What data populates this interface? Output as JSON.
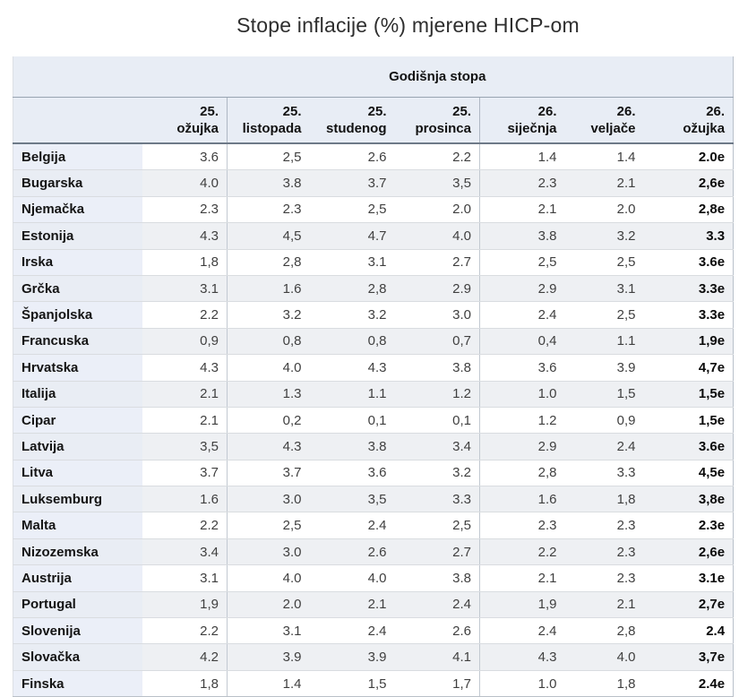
{
  "title": "Stope inflacije (%) mjerene HICP-om",
  "table": {
    "group_header": "Godišnja stopa",
    "columns": [
      {
        "top": "25.",
        "bottom": "ožujka"
      },
      {
        "top": "25.",
        "bottom": "listopada"
      },
      {
        "top": "25.",
        "bottom": "studenog"
      },
      {
        "top": "25.",
        "bottom": "prosinca"
      },
      {
        "top": "26.",
        "bottom": "siječnja"
      },
      {
        "top": "26.",
        "bottom": "veljače"
      },
      {
        "top": "26.",
        "bottom": "ožujka"
      }
    ],
    "rows": [
      {
        "country": "Belgija",
        "values": [
          "3.6",
          "2,5",
          "2.6",
          "2.2",
          "1.4",
          "1.4",
          "2.0e"
        ]
      },
      {
        "country": "Bugarska",
        "values": [
          "4.0",
          "3.8",
          "3.7",
          "3,5",
          "2.3",
          "2.1",
          "2,6e"
        ]
      },
      {
        "country": "Njemačka",
        "values": [
          "2.3",
          "2.3",
          "2,5",
          "2.0",
          "2.1",
          "2.0",
          "2,8e"
        ]
      },
      {
        "country": "Estonija",
        "values": [
          "4.3",
          "4,5",
          "4.7",
          "4.0",
          "3.8",
          "3.2",
          "3.3"
        ]
      },
      {
        "country": "Irska",
        "values": [
          "1,8",
          "2,8",
          "3.1",
          "2.7",
          "2,5",
          "2,5",
          "3.6e"
        ]
      },
      {
        "country": "Grčka",
        "values": [
          "3.1",
          "1.6",
          "2,8",
          "2.9",
          "2.9",
          "3.1",
          "3.3e"
        ]
      },
      {
        "country": "Španjolska",
        "values": [
          "2.2",
          "3.2",
          "3.2",
          "3.0",
          "2.4",
          "2,5",
          "3.3e"
        ]
      },
      {
        "country": "Francuska",
        "values": [
          "0,9",
          "0,8",
          "0,8",
          "0,7",
          "0,4",
          "1.1",
          "1,9e"
        ]
      },
      {
        "country": "Hrvatska",
        "values": [
          "4.3",
          "4.0",
          "4.3",
          "3.8",
          "3.6",
          "3.9",
          "4,7e"
        ]
      },
      {
        "country": "Italija",
        "values": [
          "2.1",
          "1.3",
          "1.1",
          "1.2",
          "1.0",
          "1,5",
          "1,5e"
        ]
      },
      {
        "country": "Cipar",
        "values": [
          "2.1",
          "0,2",
          "0,1",
          "0,1",
          "1.2",
          "0,9",
          "1,5e"
        ]
      },
      {
        "country": "Latvija",
        "values": [
          "3,5",
          "4.3",
          "3.8",
          "3.4",
          "2.9",
          "2.4",
          "3.6e"
        ]
      },
      {
        "country": "Litva",
        "values": [
          "3.7",
          "3.7",
          "3.6",
          "3.2",
          "2,8",
          "3.3",
          "4,5e"
        ]
      },
      {
        "country": "Luksemburg",
        "values": [
          "1.6",
          "3.0",
          "3,5",
          "3.3",
          "1.6",
          "1,8",
          "3,8e"
        ]
      },
      {
        "country": "Malta",
        "values": [
          "2.2",
          "2,5",
          "2.4",
          "2,5",
          "2.3",
          "2.3",
          "2.3e"
        ]
      },
      {
        "country": "Nizozemska",
        "values": [
          "3.4",
          "3.0",
          "2.6",
          "2.7",
          "2.2",
          "2.3",
          "2,6e"
        ]
      },
      {
        "country": "Austrija",
        "values": [
          "3.1",
          "4.0",
          "4.0",
          "3.8",
          "2.1",
          "2.3",
          "3.1e"
        ]
      },
      {
        "country": "Portugal",
        "values": [
          "1,9",
          "2.0",
          "2.1",
          "2.4",
          "1,9",
          "2.1",
          "2,7e"
        ]
      },
      {
        "country": "Slovenija",
        "values": [
          "2.2",
          "3.1",
          "2.4",
          "2.6",
          "2.4",
          "2,8",
          "2.4"
        ]
      },
      {
        "country": "Slovačka",
        "values": [
          "4.2",
          "3.9",
          "3.9",
          "4.1",
          "4.3",
          "4.0",
          "3,7e"
        ]
      },
      {
        "country": "Finska",
        "values": [
          "1,8",
          "1.4",
          "1,5",
          "1,7",
          "1.0",
          "1,8",
          "2.4e"
        ]
      }
    ]
  },
  "colors": {
    "header_band_bg": "#e8edf5",
    "row_stripe_bg": "#eef0f3",
    "country_column_bg": "#ebeff8",
    "header_rule": "#6e7a88",
    "value_text": "#3f3f3f",
    "bold_text": "#0a0a0a"
  },
  "chart_data": {
    "type": "table",
    "title": "Stope inflacije (%) mjerene HICP-om",
    "group_header": "Godišnja stopa",
    "columns": [
      "25. ožujka",
      "25. listopada",
      "25. studenog",
      "25. prosinca",
      "26. siječnja",
      "26. veljače",
      "26. ožujka"
    ],
    "categories": [
      "Belgija",
      "Bugarska",
      "Njemačka",
      "Estonija",
      "Irska",
      "Grčka",
      "Španjolska",
      "Francuska",
      "Hrvatska",
      "Italija",
      "Cipar",
      "Latvija",
      "Litva",
      "Luksemburg",
      "Malta",
      "Nizozemska",
      "Austrija",
      "Portugal",
      "Slovenija",
      "Slovačka",
      "Finska"
    ],
    "series": [
      {
        "name": "Belgija",
        "values": [
          3.6,
          2.5,
          2.6,
          2.2,
          1.4,
          1.4,
          2.0
        ]
      },
      {
        "name": "Bugarska",
        "values": [
          4.0,
          3.8,
          3.7,
          3.5,
          2.3,
          2.1,
          2.6
        ]
      },
      {
        "name": "Njemačka",
        "values": [
          2.3,
          2.3,
          2.5,
          2.0,
          2.1,
          2.0,
          2.8
        ]
      },
      {
        "name": "Estonija",
        "values": [
          4.3,
          4.5,
          4.7,
          4.0,
          3.8,
          3.2,
          3.3
        ]
      },
      {
        "name": "Irska",
        "values": [
          1.8,
          2.8,
          3.1,
          2.7,
          2.5,
          2.5,
          3.6
        ]
      },
      {
        "name": "Grčka",
        "values": [
          3.1,
          1.6,
          2.8,
          2.9,
          2.9,
          3.1,
          3.3
        ]
      },
      {
        "name": "Španjolska",
        "values": [
          2.2,
          3.2,
          3.2,
          3.0,
          2.4,
          2.5,
          3.3
        ]
      },
      {
        "name": "Francuska",
        "values": [
          0.9,
          0.8,
          0.8,
          0.7,
          0.4,
          1.1,
          1.9
        ]
      },
      {
        "name": "Hrvatska",
        "values": [
          4.3,
          4.0,
          4.3,
          3.8,
          3.6,
          3.9,
          4.7
        ]
      },
      {
        "name": "Italija",
        "values": [
          2.1,
          1.3,
          1.1,
          1.2,
          1.0,
          1.5,
          1.5
        ]
      },
      {
        "name": "Cipar",
        "values": [
          2.1,
          0.2,
          0.1,
          0.1,
          1.2,
          0.9,
          1.5
        ]
      },
      {
        "name": "Latvija",
        "values": [
          3.5,
          4.3,
          3.8,
          3.4,
          2.9,
          2.4,
          3.6
        ]
      },
      {
        "name": "Litva",
        "values": [
          3.7,
          3.7,
          3.6,
          3.2,
          2.8,
          3.3,
          4.5
        ]
      },
      {
        "name": "Luksemburg",
        "values": [
          1.6,
          3.0,
          3.5,
          3.3,
          1.6,
          1.8,
          3.8
        ]
      },
      {
        "name": "Malta",
        "values": [
          2.2,
          2.5,
          2.4,
          2.5,
          2.3,
          2.3,
          2.3
        ]
      },
      {
        "name": "Nizozemska",
        "values": [
          3.4,
          3.0,
          2.6,
          2.7,
          2.2,
          2.3,
          2.6
        ]
      },
      {
        "name": "Austrija",
        "values": [
          3.1,
          4.0,
          4.0,
          3.8,
          2.1,
          2.3,
          3.1
        ]
      },
      {
        "name": "Portugal",
        "values": [
          1.9,
          2.0,
          2.1,
          2.4,
          1.9,
          2.1,
          2.7
        ]
      },
      {
        "name": "Slovenija",
        "values": [
          2.2,
          3.1,
          2.4,
          2.6,
          2.4,
          2.8,
          2.4
        ]
      },
      {
        "name": "Slovačka",
        "values": [
          4.2,
          3.9,
          3.9,
          4.1,
          4.3,
          4.0,
          3.7
        ]
      },
      {
        "name": "Finska",
        "values": [
          1.8,
          1.4,
          1.5,
          1.7,
          1.0,
          1.8,
          2.4
        ]
      }
    ],
    "estimate_suffix_shown": "e"
  }
}
